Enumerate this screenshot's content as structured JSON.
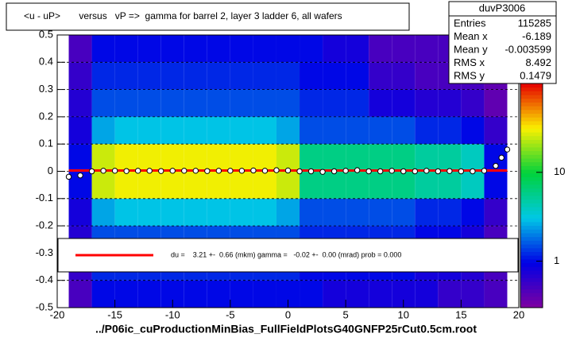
{
  "chart_data": {
    "type": "heatmap",
    "title": "<u - uP>       versus   vP =>  gamma for barrel 2, layer 3 ladder 6, all wafers",
    "x_label": "../P06ic_cuProductionMinBias_FullFieldPlotsG40GNFP25rCut0.5cm.root",
    "xlim": [
      -20,
      20
    ],
    "xticks": [
      -20,
      -15,
      -10,
      -5,
      0,
      5,
      10,
      15,
      20
    ],
    "ylim": [
      -0.5,
      0.5
    ],
    "yticks": [
      -0.5,
      -0.4,
      -0.3,
      -0.2,
      -0.1,
      0,
      0.1,
      0.2,
      0.3,
      0.4,
      0.5
    ],
    "grid": true,
    "log_z": true,
    "zlim": [
      0.3,
      100
    ],
    "zticks": [
      1,
      10
    ],
    "xbins": [
      -19,
      -17,
      -15,
      -13,
      -11,
      -9,
      -7,
      -5,
      -3,
      -1,
      1,
      3,
      5,
      7,
      9,
      11,
      13,
      15,
      17,
      19
    ],
    "ybins": [
      -0.5,
      -0.4,
      -0.3,
      -0.2,
      -0.1,
      0,
      0.1,
      0.2,
      0.3,
      0.4,
      0.5
    ],
    "z": [
      [
        0.5,
        1,
        1,
        1,
        1,
        1,
        1,
        1,
        1,
        1,
        1,
        0.8,
        0.8,
        0.8,
        0.8,
        0.8,
        0.6,
        0.6,
        0.5
      ],
      [
        0.6,
        1.2,
        1.2,
        1.2,
        1.2,
        1.2,
        1.2,
        1.2,
        1.2,
        1.2,
        1,
        1,
        1,
        1,
        1,
        0.8,
        0.8,
        0.7,
        0.5
      ],
      [
        0.7,
        1.5,
        1.5,
        1.5,
        1.5,
        1.5,
        1.5,
        1.5,
        1.5,
        1.5,
        1.2,
        1.2,
        1.2,
        1.2,
        1.2,
        1,
        1,
        0.8,
        0.5
      ],
      [
        0.8,
        2.5,
        3,
        3,
        3,
        3,
        3,
        3,
        3,
        2.5,
        1.5,
        1.5,
        1.5,
        1.5,
        1.5,
        1.2,
        1.2,
        1,
        0.6
      ],
      [
        1,
        25,
        30,
        30,
        30,
        30,
        30,
        30,
        30,
        25,
        6,
        6,
        6,
        6,
        6,
        5,
        5,
        4,
        1
      ],
      [
        1,
        25,
        30,
        30,
        30,
        30,
        30,
        30,
        30,
        25,
        6,
        6,
        6,
        6,
        6,
        5,
        5,
        4,
        1
      ],
      [
        0.8,
        2.5,
        3,
        3,
        3,
        3,
        3,
        3,
        3,
        2.5,
        1.5,
        1.5,
        1.5,
        1.5,
        1.5,
        1.2,
        1.2,
        1,
        0.6
      ],
      [
        0.7,
        1.5,
        1.5,
        1.5,
        1.5,
        1.5,
        1.5,
        1.5,
        1.5,
        1.5,
        1.2,
        1.2,
        1.2,
        0.8,
        0.8,
        0.7,
        0.7,
        0.6,
        0.4
      ],
      [
        0.6,
        1.2,
        1.2,
        1.2,
        1.2,
        1.2,
        1.2,
        1.2,
        1.2,
        1.2,
        1,
        1,
        1,
        0.6,
        0.6,
        0.5,
        0.5,
        0.5,
        0.4
      ],
      [
        0.5,
        1,
        1,
        1,
        1,
        1,
        1,
        1,
        1,
        1,
        1,
        0.8,
        0.8,
        0.5,
        0.5,
        0.5,
        0.5,
        0.4,
        0.4
      ]
    ],
    "profile": {
      "color": "#000000",
      "x": [
        -19,
        -18,
        -17,
        -16,
        -15,
        -14,
        -13,
        -12,
        -11,
        -10,
        -9,
        -8,
        -7,
        -6,
        -5,
        -4,
        -3,
        -2,
        -1,
        0,
        1,
        2,
        3,
        4,
        5,
        6,
        7,
        8,
        9,
        10,
        11,
        12,
        13,
        14,
        15,
        16,
        17,
        18,
        18.5,
        19
      ],
      "values": [
        -0.02,
        -0.015,
        0.0,
        0.002,
        0.002,
        0.001,
        0.002,
        0.002,
        0.001,
        0.002,
        0.002,
        0.002,
        0.001,
        0.002,
        0.002,
        0.002,
        0.003,
        0.002,
        0.004,
        0.003,
        0.0,
        0.0,
        -0.002,
        0.0,
        0.002,
        0.004,
        0.0,
        0.0,
        0.002,
        0.0,
        0.0,
        0.002,
        0.0,
        0.001,
        0.0,
        0.0,
        0.002,
        0.02,
        0.05,
        0.08
      ]
    },
    "fit": {
      "color": "#ff0000",
      "x": [
        -19,
        19
      ],
      "values": [
        0.003,
        0.003
      ]
    },
    "legend": "du =    3.21 +-  0.66 (mkm) gamma =   -0.02 +-  0.00 (mrad) prob = 0.000",
    "stats": {
      "name": "duvP3006",
      "rows": [
        [
          "Entries",
          115285
        ],
        [
          "Mean x",
          -6.189
        ],
        [
          "Mean y",
          -0.003599
        ],
        [
          "RMS x",
          8.492
        ],
        [
          "RMS y",
          0.1479
        ]
      ]
    }
  }
}
